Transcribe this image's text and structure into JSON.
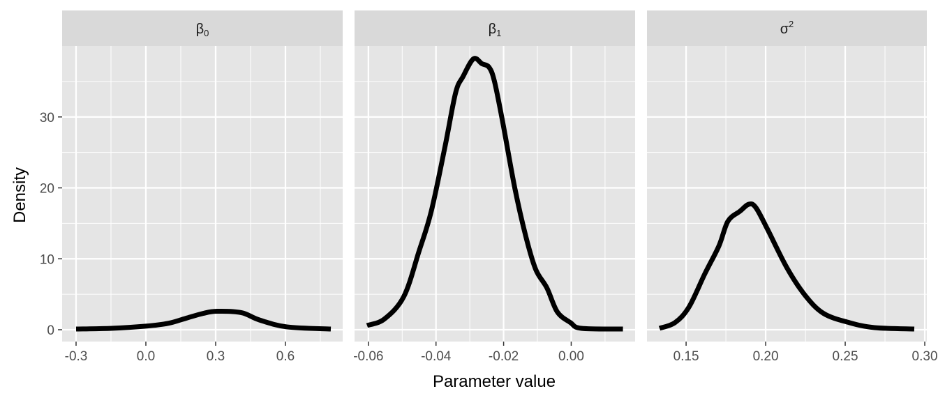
{
  "chart_data": [
    {
      "type": "line",
      "facet": "β0",
      "strip_label": {
        "base": "β",
        "sub": "0",
        "sup": ""
      },
      "xlim": [
        -0.36,
        0.846
      ],
      "ylim": [
        -1.67,
        40
      ],
      "xticks": [
        -0.3,
        0.0,
        0.3,
        0.6
      ],
      "xtick_labels": [
        "-0.3",
        "0.0",
        "0.3",
        "0.6"
      ],
      "xminor": [
        -0.15,
        0.15,
        0.45,
        0.75
      ],
      "x": [
        -0.3,
        -0.147,
        0.0,
        0.096,
        0.171,
        0.246,
        0.306,
        0.411,
        0.486,
        0.606,
        0.795
      ],
      "y": [
        0.1,
        0.2,
        0.5,
        0.9,
        1.6,
        2.3,
        2.6,
        2.4,
        1.4,
        0.4,
        0.1
      ]
    },
    {
      "type": "line",
      "facet": "β1",
      "strip_label": {
        "base": "β",
        "sub": "1",
        "sup": ""
      },
      "xlim": [
        -0.0641,
        0.0189
      ],
      "ylim": [
        -1.67,
        40
      ],
      "xticks": [
        -0.06,
        -0.04,
        -0.02,
        0.0
      ],
      "xtick_labels": [
        "-0.06",
        "-0.04",
        "-0.02",
        "0.00"
      ],
      "xminor": [
        -0.05,
        -0.03,
        -0.01,
        0.01
      ],
      "x": [
        -0.0604,
        -0.0553,
        -0.0495,
        -0.045,
        -0.0414,
        -0.0373,
        -0.0342,
        -0.032,
        -0.0289,
        -0.0264,
        -0.0243,
        -0.0227,
        -0.0202,
        -0.0167,
        -0.0134,
        -0.0105,
        -0.0072,
        -0.0041,
        -0.0002,
        0.003,
        0.0153
      ],
      "y": [
        0.6,
        1.5,
        4.7,
        11.1,
        16.7,
        25.9,
        33.4,
        35.7,
        38.2,
        37.5,
        37.0,
        35.0,
        29.1,
        20.0,
        13.1,
        8.5,
        5.9,
        2.5,
        1.0,
        0.2,
        0.1
      ]
    },
    {
      "type": "line",
      "facet": "σ2",
      "strip_label": {
        "base": "σ",
        "sub": "",
        "sup": "2"
      },
      "xlim": [
        0.1254,
        0.3013
      ],
      "ylim": [
        -1.67,
        40
      ],
      "xticks": [
        0.15,
        0.2,
        0.25,
        0.3
      ],
      "xtick_labels": [
        "0.15",
        "0.20",
        "0.25",
        "0.30"
      ],
      "xminor": [
        0.125,
        0.175,
        0.225,
        0.275
      ],
      "x": [
        0.1333,
        0.143,
        0.1518,
        0.1618,
        0.1706,
        0.1763,
        0.1838,
        0.1895,
        0.1939,
        0.2013,
        0.2132,
        0.2246,
        0.2364,
        0.2526,
        0.2684,
        0.2934
      ],
      "y": [
        0.2,
        1.0,
        3.2,
        7.9,
        11.8,
        15.3,
        16.7,
        17.7,
        17.2,
        14.1,
        8.8,
        4.9,
        2.3,
        1.0,
        0.3,
        0.1
      ]
    }
  ],
  "axes": {
    "xlabel": "Parameter value",
    "ylabel": "Density",
    "yticks": [
      0,
      10,
      20,
      30
    ],
    "ytick_labels": [
      "0",
      "10",
      "20",
      "30"
    ],
    "yminor": [
      5,
      15,
      25,
      35
    ]
  },
  "colors": {
    "panel_bg": "#e5e5e5",
    "strip_bg": "#d9d9d9",
    "grid": "#ffffff",
    "line": "#000000",
    "text": "#4d4d4d"
  }
}
